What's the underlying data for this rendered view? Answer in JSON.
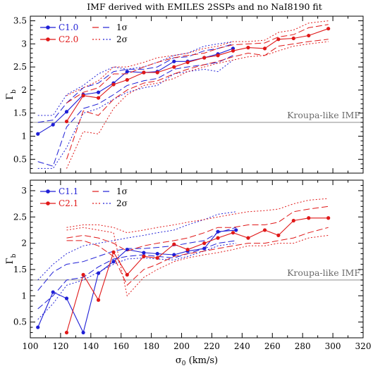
{
  "title": "IMF derived with EMILES 2SSPs and no NaI8190 fit",
  "reference_label": "Kroupa-like IMF",
  "colors": {
    "blue": "#1f1fd6",
    "red": "#e01818",
    "ref_line": "#8c8c8c",
    "axis": "#000000"
  },
  "chart_data": [
    {
      "type": "line",
      "panel": "top",
      "xlabel": "",
      "ylabel": "Γb",
      "xlim": [
        100,
        320
      ],
      "ylim": [
        0.2,
        3.6
      ],
      "x_ticks": [
        100,
        120,
        140,
        160,
        180,
        200,
        220,
        240,
        260,
        280,
        300,
        320
      ],
      "y_ticks": [
        0.5,
        1,
        1.5,
        2,
        2.5,
        3,
        3.5
      ],
      "y_tick_labels": [
        "0.5",
        "1",
        "1.5",
        "2",
        "2.5",
        "3",
        "3.5"
      ],
      "reference_value": 1.3,
      "legend": {
        "placement": "top-left",
        "labels": [
          "C1.0",
          "C2.0",
          "1σ",
          "2σ"
        ]
      },
      "series": [
        {
          "name": "C1.0",
          "color": "blue",
          "x": [
            105,
            115,
            124,
            135,
            145,
            155,
            164,
            175,
            184,
            195,
            204,
            215,
            224,
            234
          ],
          "y": [
            1.05,
            1.25,
            1.53,
            1.9,
            1.95,
            2.15,
            2.4,
            2.38,
            2.4,
            2.62,
            2.62,
            2.7,
            2.78,
            2.9
          ],
          "lo1": [
            0.45,
            0.35,
            1.2,
            1.6,
            1.7,
            1.9,
            2.1,
            2.2,
            2.25,
            2.45,
            2.5,
            2.55,
            2.6,
            2.75
          ],
          "hi1": [
            1.3,
            1.35,
            1.72,
            2.05,
            2.15,
            2.4,
            2.45,
            2.45,
            2.5,
            2.7,
            2.72,
            2.85,
            2.9,
            3.0
          ],
          "lo2": [
            0.3,
            0.3,
            0.75,
            1.5,
            1.6,
            1.8,
            1.95,
            2.05,
            2.1,
            2.35,
            2.4,
            2.45,
            2.4,
            2.65
          ],
          "hi2": [
            1.45,
            1.45,
            1.9,
            2.1,
            2.35,
            2.5,
            2.45,
            2.5,
            2.6,
            2.75,
            2.8,
            2.95,
            3.0,
            3.05
          ]
        },
        {
          "name": "C2.0",
          "color": "red",
          "x": [
            124,
            135,
            145,
            155,
            164,
            175,
            184,
            195,
            204,
            215,
            224,
            234,
            244,
            255,
            264,
            274,
            284,
            297
          ],
          "y": [
            1.32,
            1.88,
            1.83,
            2.12,
            2.22,
            2.38,
            2.38,
            2.5,
            2.6,
            2.7,
            2.75,
            2.85,
            2.92,
            2.9,
            3.1,
            3.12,
            3.18,
            3.33
          ],
          "lo1": [
            0.5,
            1.55,
            1.45,
            1.8,
            2.0,
            2.15,
            2.2,
            2.35,
            2.45,
            2.55,
            2.62,
            2.72,
            2.8,
            2.75,
            2.95,
            3.0,
            3.05,
            3.1
          ],
          "hi1": [
            1.72,
            1.95,
            2.05,
            2.35,
            2.35,
            2.5,
            2.6,
            2.7,
            2.75,
            2.8,
            2.9,
            2.98,
            3.0,
            3.02,
            3.15,
            3.2,
            3.35,
            3.42
          ],
          "lo2": [
            0.3,
            1.1,
            1.05,
            1.6,
            1.9,
            2.1,
            2.15,
            2.25,
            2.4,
            2.5,
            2.58,
            2.65,
            2.72,
            2.75,
            2.85,
            2.95,
            3.0,
            3.05
          ],
          "hi2": [
            1.88,
            2.05,
            2.2,
            2.5,
            2.5,
            2.6,
            2.7,
            2.75,
            2.8,
            2.9,
            2.95,
            3.05,
            3.05,
            3.08,
            3.25,
            3.3,
            3.45,
            3.5
          ]
        }
      ]
    },
    {
      "type": "line",
      "panel": "bottom",
      "xlabel": "σ0 (km/s)",
      "ylabel": "Γb",
      "xlim": [
        100,
        320
      ],
      "ylim": [
        0.2,
        3.2
      ],
      "x_ticks": [
        100,
        120,
        140,
        160,
        180,
        200,
        220,
        240,
        260,
        280,
        300,
        320
      ],
      "x_tick_labels": [
        "100",
        "120",
        "140",
        "160",
        "180",
        "200",
        "220",
        "240",
        "260",
        "280",
        "300",
        "320"
      ],
      "y_ticks": [
        0.5,
        1,
        1.5,
        2,
        2.5,
        3
      ],
      "y_tick_labels": [
        "0.5",
        "1",
        "1.5",
        "2",
        "2.5",
        "3"
      ],
      "reference_value": 1.3,
      "legend": {
        "placement": "top-left",
        "labels": [
          "C1.1",
          "C2.1",
          "1σ",
          "2σ"
        ]
      },
      "series": [
        {
          "name": "C1.1",
          "color": "blue",
          "x": [
            105,
            115,
            124,
            135,
            145,
            155,
            164,
            175,
            184,
            195,
            204,
            215,
            224,
            236
          ],
          "y": [
            0.4,
            1.07,
            0.95,
            0.3,
            1.43,
            1.65,
            1.88,
            1.82,
            1.8,
            1.78,
            1.85,
            1.9,
            2.22,
            2.25
          ],
          "lo1": [
            0.75,
            1.0,
            1.3,
            1.35,
            1.55,
            1.7,
            1.75,
            1.78,
            1.75,
            1.72,
            1.8,
            1.9,
            2.0,
            2.05
          ],
          "hi1": [
            1.1,
            1.45,
            1.6,
            1.65,
            1.75,
            1.85,
            1.9,
            1.9,
            1.92,
            1.95,
            2.0,
            2.05,
            2.2,
            2.3
          ],
          "lo2": [
            0.55,
            0.85,
            1.2,
            1.3,
            1.45,
            1.6,
            1.7,
            1.72,
            1.7,
            1.68,
            1.75,
            1.85,
            1.95,
            2.0
          ],
          "hi2": [
            1.3,
            1.6,
            1.8,
            1.95,
            2.0,
            2.05,
            2.1,
            2.15,
            2.2,
            2.25,
            2.35,
            2.45,
            2.55,
            2.6
          ]
        },
        {
          "name": "C2.1",
          "color": "red",
          "x": [
            124,
            135,
            145,
            155,
            164,
            175,
            184,
            195,
            204,
            215,
            224,
            234,
            244,
            255,
            264,
            274,
            284,
            297
          ],
          "y": [
            0.3,
            1.4,
            0.92,
            1.83,
            1.4,
            1.75,
            1.72,
            1.98,
            1.88,
            2.0,
            2.1,
            2.2,
            2.1,
            2.25,
            2.15,
            2.43,
            2.48,
            2.48
          ],
          "lo1": [
            2.05,
            2.05,
            1.95,
            1.75,
            1.2,
            1.5,
            1.6,
            1.75,
            1.8,
            1.85,
            1.9,
            1.95,
            2.0,
            2.0,
            2.05,
            2.1,
            2.2,
            2.3
          ],
          "hi1": [
            2.1,
            2.15,
            2.1,
            2.0,
            1.85,
            1.95,
            2.0,
            2.05,
            2.1,
            2.2,
            2.3,
            2.3,
            2.35,
            2.35,
            2.4,
            2.6,
            2.65,
            2.7
          ],
          "lo2": [
            2.25,
            2.3,
            2.25,
            2.2,
            1.0,
            1.35,
            1.5,
            1.65,
            1.72,
            1.78,
            1.82,
            1.88,
            1.95,
            1.95,
            2.0,
            2.0,
            2.1,
            2.15
          ],
          "hi2": [
            2.3,
            2.35,
            2.35,
            2.3,
            2.2,
            2.25,
            2.3,
            2.35,
            2.4,
            2.45,
            2.5,
            2.55,
            2.6,
            2.62,
            2.65,
            2.75,
            2.82,
            2.85
          ]
        }
      ]
    }
  ]
}
